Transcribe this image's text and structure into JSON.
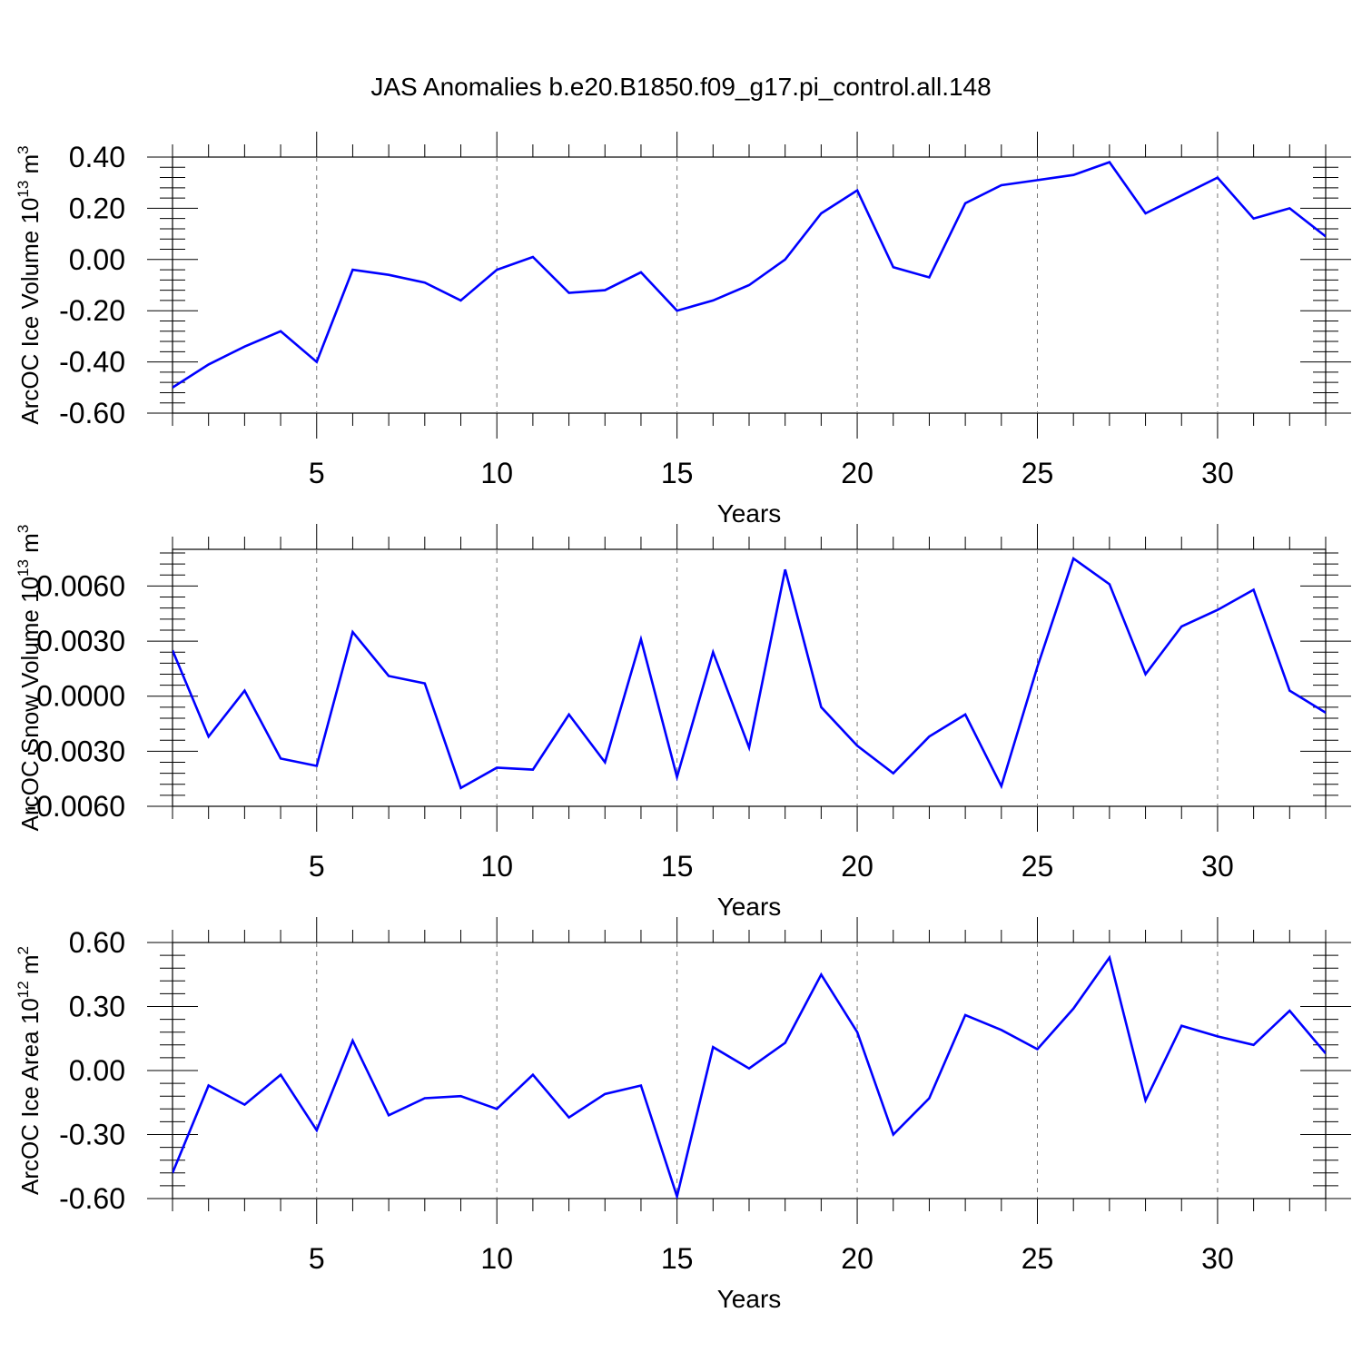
{
  "chart_data": {
    "title": "JAS Anomalies b.e20.B1850.f09_g17.pi_control.all.148",
    "panels": [
      {
        "type": "line",
        "ylabel": "ArcOC Ice Volume 10",
        "ylabel_sup": "13",
        "ylabel_unit": "m",
        "ylabel_unit_sup": "3",
        "xlabel": "Years",
        "xlim": [
          1,
          33
        ],
        "ylim": [
          -0.6,
          0.4
        ],
        "xticks": [
          5,
          10,
          15,
          20,
          25,
          30
        ],
        "xticklabels": [
          "5",
          "10",
          "15",
          "20",
          "25",
          "30"
        ],
        "yticks": [
          -0.6,
          -0.4,
          -0.2,
          0.0,
          0.2,
          0.4
        ],
        "yticklabels": [
          "-0.60",
          "-0.40",
          "-0.20",
          "0.00",
          "0.20",
          "0.40"
        ],
        "series_color": "#0000ff",
        "x": [
          1,
          2,
          3,
          4,
          5,
          6,
          7,
          8,
          9,
          10,
          11,
          12,
          13,
          14,
          15,
          16,
          17,
          18,
          19,
          20,
          21,
          22,
          23,
          24,
          25,
          26,
          27,
          28,
          29,
          30,
          31,
          32,
          33
        ],
        "y": [
          -0.5,
          -0.41,
          -0.34,
          -0.28,
          -0.4,
          -0.04,
          -0.06,
          -0.09,
          -0.16,
          -0.04,
          0.01,
          -0.13,
          -0.12,
          -0.05,
          -0.2,
          -0.16,
          -0.1,
          0.0,
          0.18,
          0.27,
          -0.03,
          -0.07,
          0.22,
          0.29,
          0.31,
          0.33,
          0.38,
          0.18,
          0.25,
          0.32,
          0.16,
          0.2,
          0.09
        ]
      },
      {
        "type": "line",
        "ylabel": "ArcOC Snow Volume 10",
        "ylabel_sup": "13",
        "ylabel_unit": "m",
        "ylabel_unit_sup": "3",
        "xlabel": "Years",
        "xlim": [
          1,
          33
        ],
        "ylim": [
          -0.006,
          0.008
        ],
        "xticks": [
          5,
          10,
          15,
          20,
          25,
          30
        ],
        "xticklabels": [
          "5",
          "10",
          "15",
          "20",
          "25",
          "30"
        ],
        "yticks": [
          -0.006,
          -0.003,
          0.0,
          0.003,
          0.006
        ],
        "yticklabels": [
          "-0.0060",
          "-0.0030",
          "0.0000",
          "0.0030",
          "0.0060"
        ],
        "series_color": "#0000ff",
        "x": [
          1,
          2,
          3,
          4,
          5,
          6,
          7,
          8,
          9,
          10,
          11,
          12,
          13,
          14,
          15,
          16,
          17,
          18,
          19,
          20,
          21,
          22,
          23,
          24,
          25,
          26,
          27,
          28,
          29,
          30,
          31,
          32,
          33
        ],
        "y": [
          0.0025,
          -0.0022,
          0.0003,
          -0.0034,
          -0.0038,
          0.0035,
          0.0011,
          0.0007,
          -0.005,
          -0.0039,
          -0.004,
          -0.001,
          -0.0036,
          0.0031,
          -0.0044,
          0.0024,
          -0.0028,
          0.0069,
          -0.0006,
          -0.0027,
          -0.0042,
          -0.0022,
          -0.001,
          -0.0049,
          0.0016,
          0.0075,
          0.0061,
          0.0012,
          0.0038,
          0.0047,
          0.0058,
          0.0003,
          -0.0009
        ]
      },
      {
        "type": "line",
        "ylabel": "ArcOC Ice Area 10",
        "ylabel_sup": "12",
        "ylabel_unit": "m",
        "ylabel_unit_sup": "2",
        "xlabel": "Years",
        "xlim": [
          1,
          33
        ],
        "ylim": [
          -0.6,
          0.6
        ],
        "xticks": [
          5,
          10,
          15,
          20,
          25,
          30
        ],
        "xticklabels": [
          "5",
          "10",
          "15",
          "20",
          "25",
          "30"
        ],
        "yticks": [
          -0.6,
          -0.3,
          0.0,
          0.3,
          0.6
        ],
        "yticklabels": [
          "-0.60",
          "-0.30",
          "0.00",
          "0.30",
          "0.60"
        ],
        "series_color": "#0000ff",
        "x": [
          1,
          2,
          3,
          4,
          5,
          6,
          7,
          8,
          9,
          10,
          11,
          12,
          13,
          14,
          15,
          16,
          17,
          18,
          19,
          20,
          21,
          22,
          23,
          24,
          25,
          26,
          27,
          28,
          29,
          30,
          31,
          32,
          33
        ],
        "y": [
          -0.48,
          -0.07,
          -0.16,
          -0.02,
          -0.28,
          0.14,
          -0.21,
          -0.13,
          -0.12,
          -0.18,
          -0.02,
          -0.22,
          -0.11,
          -0.07,
          -0.59,
          0.11,
          0.01,
          0.13,
          0.45,
          0.18,
          -0.3,
          -0.13,
          0.26,
          0.19,
          0.1,
          0.29,
          0.53,
          -0.14,
          0.21,
          0.16,
          0.12,
          0.28,
          0.08
        ]
      }
    ]
  }
}
